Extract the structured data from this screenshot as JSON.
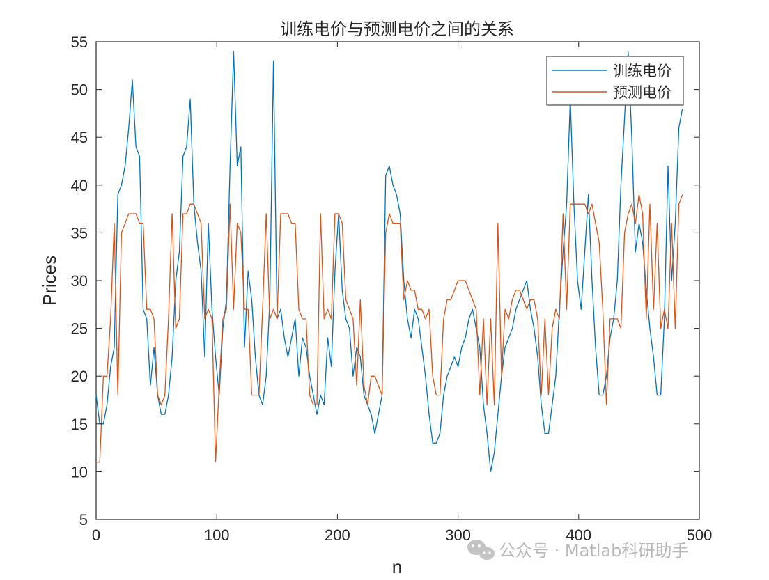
{
  "chart_data": {
    "type": "line",
    "title": "训练电价与预测电价之间的关系",
    "xlabel": "n",
    "ylabel": "Prices",
    "xlim": [
      0,
      500
    ],
    "ylim": [
      5,
      55
    ],
    "xticks": [
      0,
      100,
      200,
      300,
      400,
      500
    ],
    "yticks": [
      5,
      10,
      15,
      20,
      25,
      30,
      35,
      40,
      45,
      50,
      55
    ],
    "grid": false,
    "legend_position": "top-right",
    "series": [
      {
        "name": "训练电价",
        "color": "#0072BD",
        "x": [
          0,
          3,
          6,
          9,
          12,
          15,
          18,
          21,
          24,
          27,
          30,
          33,
          36,
          39,
          42,
          45,
          48,
          51,
          54,
          57,
          60,
          63,
          66,
          69,
          72,
          75,
          78,
          81,
          84,
          87,
          90,
          93,
          96,
          99,
          102,
          105,
          108,
          111,
          114,
          117,
          120,
          123,
          126,
          129,
          132,
          135,
          138,
          141,
          144,
          147,
          150,
          153,
          156,
          159,
          162,
          165,
          168,
          171,
          174,
          177,
          180,
          183,
          186,
          189,
          192,
          195,
          198,
          201,
          204,
          207,
          210,
          213,
          216,
          219,
          222,
          225,
          228,
          231,
          234,
          237,
          240,
          243,
          246,
          249,
          252,
          255,
          258,
          261,
          264,
          267,
          270,
          273,
          276,
          279,
          282,
          285,
          288,
          291,
          294,
          297,
          300,
          303,
          306,
          309,
          312,
          315,
          318,
          321,
          324,
          327,
          330,
          333,
          336,
          339,
          342,
          345,
          348,
          351,
          354,
          357,
          360,
          363,
          366,
          369,
          372,
          375,
          378,
          381,
          384,
          387,
          390,
          393,
          396,
          399,
          402,
          405,
          408,
          411,
          414,
          417,
          420,
          423,
          426,
          429,
          432,
          435,
          438,
          441,
          444,
          447,
          450,
          453,
          456,
          459,
          462,
          465,
          468,
          471,
          474,
          477,
          480,
          483,
          486
        ],
        "y": [
          18,
          15,
          15,
          17,
          21,
          23,
          39,
          40,
          42,
          46,
          51,
          44,
          43,
          27,
          26,
          19,
          23,
          18,
          16,
          16,
          18,
          22,
          30,
          33,
          43,
          44,
          49,
          38,
          34,
          31,
          22,
          36,
          27,
          22,
          18,
          25,
          28,
          42,
          54,
          42,
          44,
          23,
          31,
          28,
          22,
          18,
          17,
          20,
          28,
          53,
          26,
          27,
          24,
          22,
          24,
          26,
          20,
          24,
          23,
          20,
          18,
          16,
          18,
          17,
          24,
          21,
          31,
          37,
          29,
          26,
          25,
          20,
          23,
          22,
          18,
          17,
          16,
          14,
          16,
          18,
          41,
          42,
          40,
          39,
          37,
          30,
          26,
          24,
          27,
          26,
          23,
          20,
          16,
          13,
          13,
          14,
          18,
          20,
          21,
          22,
          21,
          23,
          24,
          26,
          27,
          25,
          23,
          17,
          14,
          10,
          12,
          16,
          20,
          23,
          24,
          25,
          27,
          28,
          29,
          30,
          27,
          25,
          22,
          17,
          14,
          14,
          17,
          20,
          27,
          33,
          38,
          49,
          38,
          30,
          27,
          33,
          39,
          30,
          23,
          18,
          18,
          20,
          24,
          26,
          30,
          40,
          47,
          54,
          45,
          33,
          36,
          34,
          29,
          25,
          22,
          18,
          18,
          26,
          42,
          30,
          36,
          46,
          48
        ]
      },
      {
        "name": "预测电价",
        "color": "#D95319",
        "x": [
          0,
          3,
          6,
          9,
          12,
          15,
          18,
          21,
          24,
          27,
          30,
          33,
          36,
          39,
          42,
          45,
          48,
          51,
          54,
          57,
          60,
          63,
          66,
          69,
          72,
          75,
          78,
          81,
          84,
          87,
          90,
          93,
          96,
          99,
          102,
          105,
          108,
          111,
          114,
          117,
          120,
          123,
          126,
          129,
          132,
          135,
          138,
          141,
          144,
          147,
          150,
          153,
          156,
          159,
          162,
          165,
          168,
          171,
          174,
          177,
          180,
          183,
          186,
          189,
          192,
          195,
          198,
          201,
          204,
          207,
          210,
          213,
          216,
          219,
          222,
          225,
          228,
          231,
          234,
          237,
          240,
          243,
          246,
          249,
          252,
          255,
          258,
          261,
          264,
          267,
          270,
          273,
          276,
          279,
          282,
          285,
          288,
          291,
          294,
          297,
          300,
          303,
          306,
          309,
          312,
          315,
          318,
          321,
          324,
          327,
          330,
          333,
          336,
          339,
          342,
          345,
          348,
          351,
          354,
          357,
          360,
          363,
          366,
          369,
          372,
          375,
          378,
          381,
          384,
          387,
          390,
          393,
          396,
          399,
          402,
          405,
          408,
          411,
          414,
          417,
          420,
          423,
          426,
          429,
          432,
          435,
          438,
          441,
          444,
          447,
          450,
          453,
          456,
          459,
          462,
          465,
          468,
          471,
          474,
          477,
          480,
          483,
          486
        ],
        "y": [
          11,
          11,
          20,
          20,
          26,
          36,
          18,
          35,
          36,
          37,
          37,
          37,
          36,
          36,
          27,
          27,
          26,
          18,
          17,
          18,
          26,
          37,
          25,
          26,
          37,
          37,
          38,
          38,
          37,
          36,
          26,
          27,
          26,
          11,
          19,
          26,
          27,
          38,
          27,
          36,
          35,
          27,
          27,
          18,
          18,
          18,
          27,
          37,
          26,
          27,
          26,
          37,
          37,
          37,
          36,
          36,
          27,
          26,
          26,
          18,
          17,
          17,
          37,
          26,
          27,
          26,
          37,
          37,
          36,
          28,
          27,
          26,
          19,
          28,
          19,
          17,
          20,
          20,
          19,
          18,
          35,
          37,
          36,
          36,
          36,
          28,
          30,
          29,
          29,
          27,
          27,
          26,
          27,
          20,
          18,
          18,
          26,
          28,
          28,
          29,
          30,
          30,
          30,
          29,
          28,
          27,
          18,
          26,
          17,
          26,
          17,
          36,
          20,
          27,
          26,
          28,
          29,
          29,
          28,
          27,
          28,
          28,
          26,
          18,
          26,
          18,
          25,
          27,
          26,
          37,
          27,
          38,
          38,
          38,
          38,
          38,
          37,
          38,
          36,
          34,
          27,
          17,
          26,
          26,
          26,
          25,
          35,
          37,
          38,
          36,
          39,
          37,
          26,
          38,
          27,
          36,
          25,
          27,
          25,
          36,
          25,
          38,
          39
        ]
      }
    ]
  },
  "watermark": {
    "text": "公众号 · Matlab科研助手",
    "icon": "wechat-icon"
  }
}
